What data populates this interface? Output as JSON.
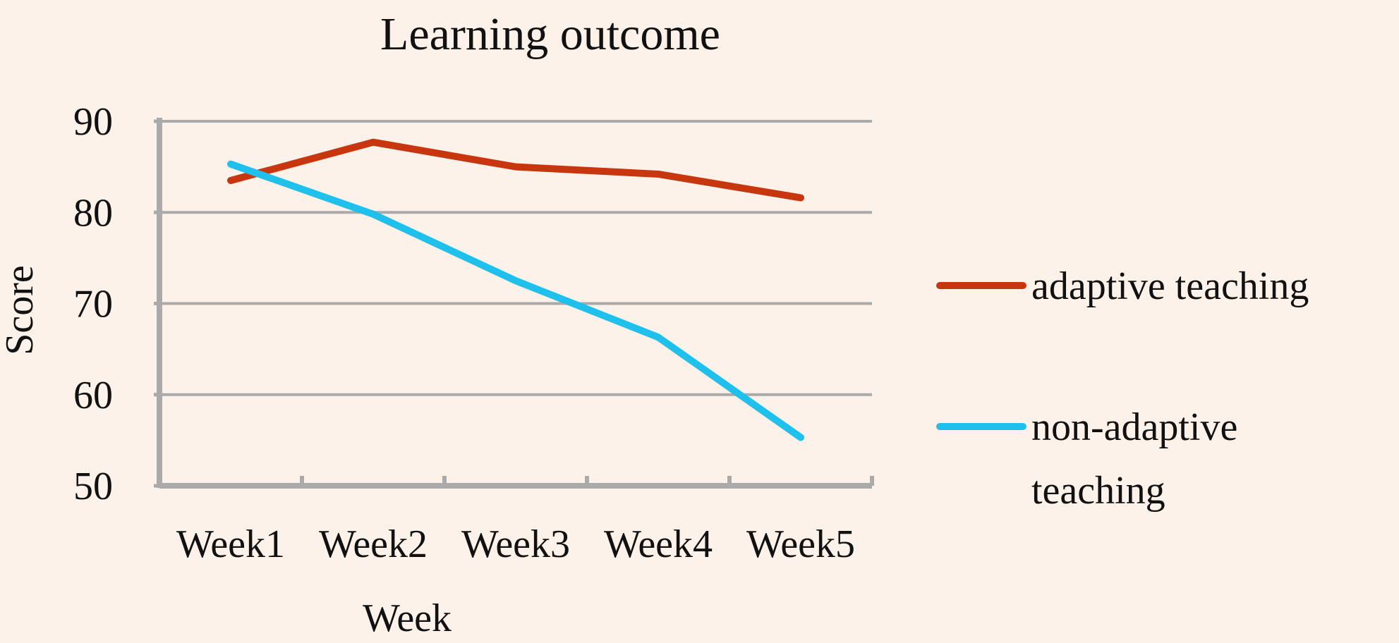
{
  "chart_data": {
    "type": "line",
    "title": "Learning outcome",
    "xlabel": "Week",
    "ylabel": "Score",
    "categories": [
      "Week1",
      "Week2",
      "Week3",
      "Week4",
      "Week5"
    ],
    "ylim": [
      50,
      90
    ],
    "yticks": [
      50,
      60,
      70,
      80,
      90
    ],
    "grid": true,
    "legend_position": "right",
    "series": [
      {
        "name": "adaptive teaching",
        "legend_lines": [
          "adaptive teaching"
        ],
        "color": "#c8360f",
        "values": [
          83.5,
          87.7,
          85.0,
          84.2,
          81.6
        ]
      },
      {
        "name": "non-adaptive teaching",
        "legend_lines": [
          "non-adaptive",
          "teaching"
        ],
        "color": "#1fc1ec",
        "values": [
          85.3,
          79.8,
          72.5,
          66.3,
          55.3
        ]
      }
    ]
  }
}
